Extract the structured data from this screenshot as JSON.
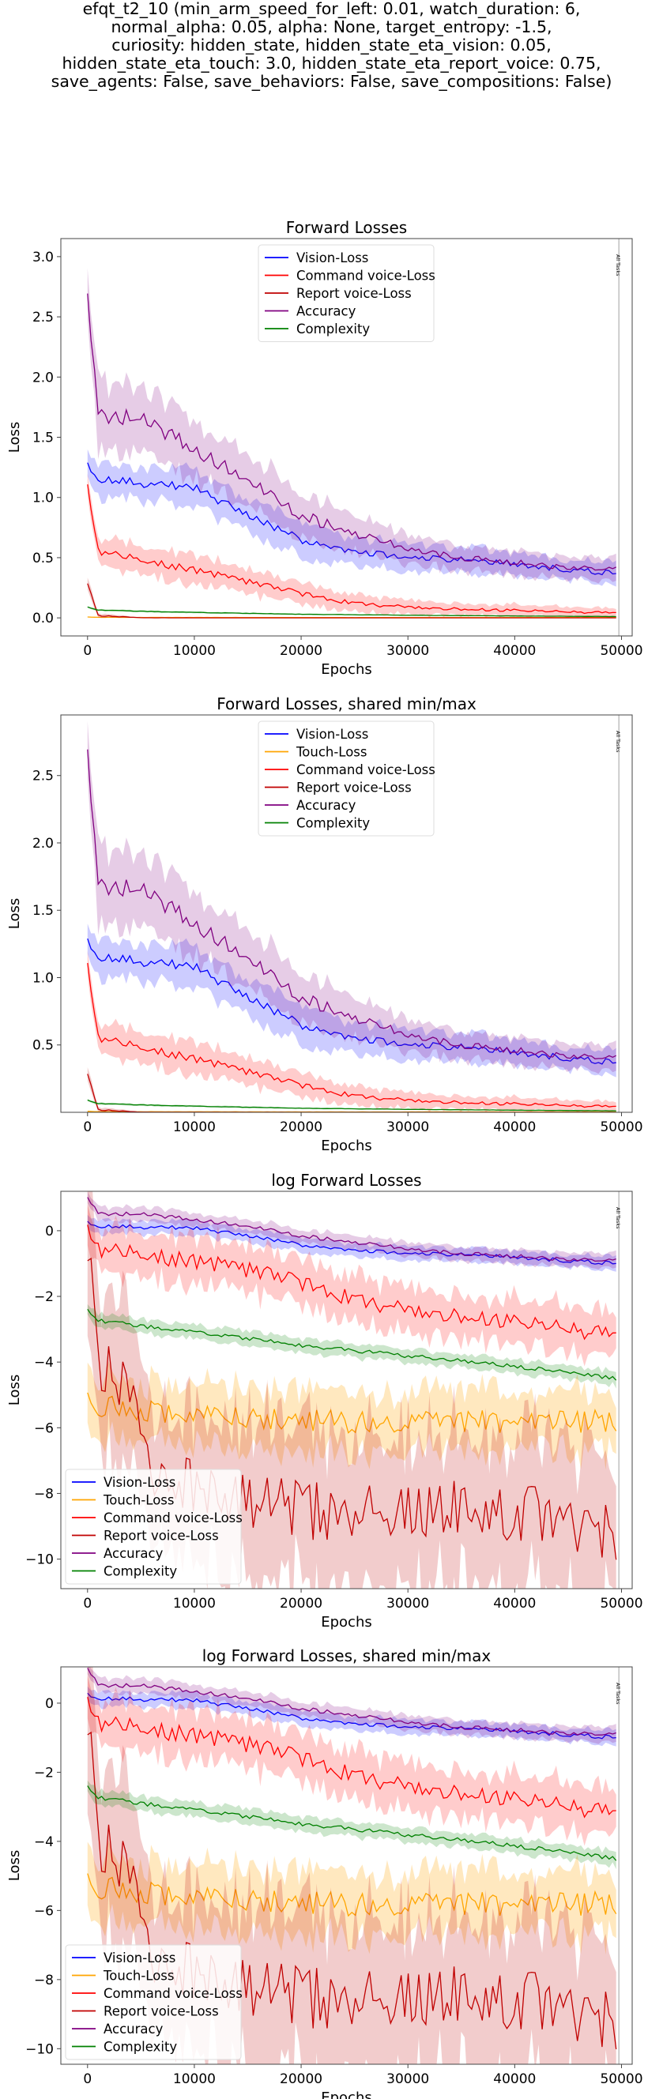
{
  "page": {
    "title_lines": [
      "efqt_t2_10 (min_arm_speed_for_left: 0.01, watch_duration: 6,",
      "normal_alpha: 0.05, alpha: None, target_entropy: -1.5,",
      "curiosity: hidden_state, hidden_state_eta_vision: 0.05,",
      "hidden_state_eta_touch: 3.0, hidden_state_eta_report_voice: 0.75,",
      "save_agents: False, save_behaviors: False, save_compositions: False)"
    ]
  },
  "colors": {
    "vision": "#0000ff",
    "touch": "#ffa500",
    "command": "#ff0000",
    "report": "#c00000",
    "accuracy": "#800080",
    "complexity": "#008000"
  },
  "chart_data": [
    {
      "type": "line",
      "title": "Forward Losses",
      "xlabel": "Epochs",
      "ylabel": "Loss",
      "xlim": [
        -2500,
        51000
      ],
      "ylim": [
        -0.15,
        3.15
      ],
      "xticks": [
        0,
        10000,
        20000,
        30000,
        40000,
        50000
      ],
      "yticks": [
        0.0,
        0.5,
        1.0,
        1.5,
        2.0,
        2.5,
        3.0
      ],
      "yticklabels": [
        "0.0",
        "0.5",
        "1.0",
        "1.5",
        "2.0",
        "2.5",
        "3.0"
      ],
      "vline": {
        "x": 49750,
        "label": "All Tasks"
      },
      "legend": "upper-center",
      "legend_entries": [
        "Vision-Loss",
        "Command voice-Loss",
        "Report voice-Loss",
        "Accuracy",
        "Complexity"
      ],
      "series_keys": [
        "vision",
        "touch",
        "command",
        "report",
        "accuracy",
        "complexity"
      ]
    },
    {
      "type": "line",
      "title": "Forward Losses, shared min/max",
      "xlabel": "Epochs",
      "ylabel": "Loss",
      "xlim": [
        -2500,
        51000
      ],
      "ylim": [
        0.0,
        2.95
      ],
      "xticks": [
        0,
        10000,
        20000,
        30000,
        40000,
        50000
      ],
      "yticks": [
        0.5,
        1.0,
        1.5,
        2.0,
        2.5
      ],
      "yticklabels": [
        "0.5",
        "1.0",
        "1.5",
        "2.0",
        "2.5"
      ],
      "vline": {
        "x": 49750,
        "label": "All Tasks"
      },
      "legend": "upper-center",
      "legend_entries": [
        "Vision-Loss",
        "Touch-Loss",
        "Command voice-Loss",
        "Report voice-Loss",
        "Accuracy",
        "Complexity"
      ],
      "series_keys": [
        "vision",
        "touch",
        "command",
        "report",
        "accuracy",
        "complexity"
      ]
    },
    {
      "type": "line",
      "title": "log Forward Losses",
      "xlabel": "Epochs",
      "ylabel": "Loss",
      "log": true,
      "xlim": [
        -2500,
        51000
      ],
      "ylim": [
        -10.9,
        1.2
      ],
      "xticks": [
        0,
        10000,
        20000,
        30000,
        40000,
        50000
      ],
      "yticks": [
        0,
        -2,
        -4,
        -6,
        -8,
        -10
      ],
      "yticklabels": [
        "0",
        "−2",
        "−4",
        "−6",
        "−8",
        "−10"
      ],
      "vline": {
        "x": 49750,
        "label": "All Tasks"
      },
      "legend": "lower-left",
      "legend_entries": [
        "Vision-Loss",
        "Touch-Loss",
        "Command voice-Loss",
        "Report voice-Loss",
        "Accuracy",
        "Complexity"
      ],
      "series_keys": [
        "vision",
        "touch",
        "command",
        "report",
        "accuracy",
        "complexity"
      ]
    },
    {
      "type": "line",
      "title": "log Forward Losses, shared min/max",
      "xlabel": "Epochs",
      "ylabel": "Loss",
      "log": true,
      "xlim": [
        -2500,
        51000
      ],
      "ylim": [
        -10.45,
        1.05
      ],
      "xticks": [
        0,
        10000,
        20000,
        30000,
        40000,
        50000
      ],
      "yticks": [
        0,
        -2,
        -4,
        -6,
        -8,
        -10
      ],
      "yticklabels": [
        "0",
        "−2",
        "−4",
        "−6",
        "−8",
        "−10"
      ],
      "vline": {
        "x": 49750,
        "label": "All Tasks"
      },
      "legend": "lower-left",
      "legend_entries": [
        "Vision-Loss",
        "Touch-Loss",
        "Command voice-Loss",
        "Report voice-Loss",
        "Accuracy",
        "Complexity"
      ],
      "series_keys": [
        "vision",
        "touch",
        "command",
        "report",
        "accuracy",
        "complexity"
      ]
    }
  ],
  "series": {
    "vision": {
      "x": [
        0,
        1000,
        5000,
        10000,
        15000,
        20000,
        25000,
        30000,
        35000,
        40000,
        45000,
        49500
      ],
      "y": [
        1.26,
        1.16,
        1.12,
        1.08,
        0.85,
        0.65,
        0.55,
        0.5,
        0.48,
        0.45,
        0.4,
        0.37
      ],
      "band": [
        0.12,
        0.14,
        0.14,
        0.14,
        0.14,
        0.14,
        0.12,
        0.11,
        0.11,
        0.1,
        0.09,
        0.09
      ]
    },
    "touch": {
      "x": [
        0,
        1000,
        5000,
        10000,
        20000,
        30000,
        40000,
        49500
      ],
      "y": [
        0.008,
        0.005,
        0.004,
        0.004,
        0.003,
        0.003,
        0.003,
        0.003
      ],
      "band": [
        0.003,
        0.002,
        0.002,
        0.002,
        0.002,
        0.002,
        0.002,
        0.002
      ]
    },
    "command": {
      "x": [
        0,
        1000,
        5000,
        10000,
        15000,
        20000,
        25000,
        30000,
        35000,
        40000,
        45000,
        49500
      ],
      "y": [
        1.1,
        0.55,
        0.48,
        0.4,
        0.3,
        0.2,
        0.12,
        0.09,
        0.07,
        0.06,
        0.05,
        0.04
      ],
      "band": [
        0.1,
        0.12,
        0.12,
        0.12,
        0.1,
        0.09,
        0.07,
        0.06,
        0.05,
        0.05,
        0.04,
        0.04
      ]
    },
    "report": {
      "x": [
        0,
        1000,
        5000,
        10000,
        20000,
        30000,
        40000,
        49500
      ],
      "y": [
        0.28,
        0.02,
        0.0008,
        0.0004,
        0.0002,
        0.0002,
        0.0002,
        0.0001
      ],
      "band": [
        0.05,
        0.02,
        0.001,
        0.0005,
        0.0003,
        0.0003,
        0.0003,
        0.0002
      ]
    },
    "accuracy": {
      "x": [
        0,
        1000,
        5000,
        10000,
        15000,
        20000,
        25000,
        30000,
        35000,
        40000,
        45000,
        49500
      ],
      "y": [
        2.65,
        1.7,
        1.65,
        1.4,
        1.15,
        0.85,
        0.7,
        0.58,
        0.5,
        0.46,
        0.42,
        0.4
      ],
      "band": [
        0.25,
        0.3,
        0.25,
        0.25,
        0.22,
        0.2,
        0.15,
        0.12,
        0.1,
        0.1,
        0.09,
        0.09
      ]
    },
    "complexity": {
      "x": [
        0,
        1000,
        5000,
        10000,
        20000,
        30000,
        40000,
        49500
      ],
      "y": [
        0.09,
        0.065,
        0.055,
        0.045,
        0.03,
        0.022,
        0.016,
        0.011
      ],
      "band": [
        0.01,
        0.008,
        0.008,
        0.007,
        0.005,
        0.004,
        0.003,
        0.003
      ]
    }
  },
  "labels": {
    "vision": "Vision-Loss",
    "touch": "Touch-Loss",
    "command": "Command voice-Loss",
    "report": "Report voice-Loss",
    "accuracy": "Accuracy",
    "complexity": "Complexity"
  }
}
